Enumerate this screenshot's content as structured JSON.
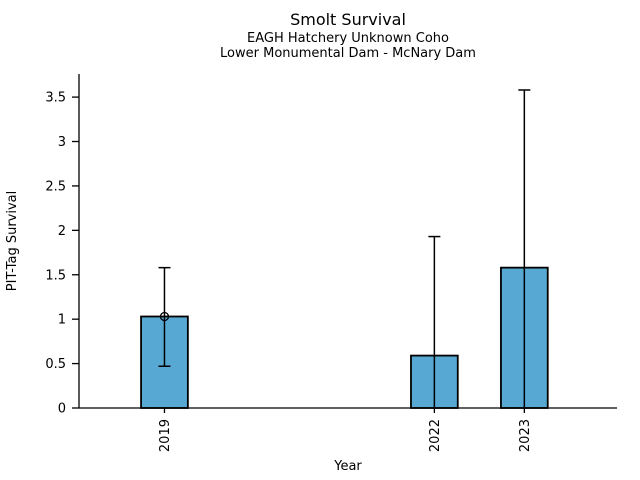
{
  "chart_data": {
    "type": "bar",
    "title": "Smolt Survival",
    "subtitle_line1": "EAGH Hatchery Unknown Coho",
    "subtitle_line2": "Lower Monumental Dam - McNary Dam",
    "xlabel": "Year",
    "ylabel": "PIT-Tag Survival",
    "categories": [
      "2019",
      "2022",
      "2023"
    ],
    "x_numeric": [
      2019,
      2022,
      2023
    ],
    "values": [
      1.03,
      0.59,
      1.58
    ],
    "error_bars": {
      "low": [
        0.47,
        0,
        0
      ],
      "high": [
        1.58,
        1.93,
        3.58
      ]
    },
    "point_marker_categories": [
      "2019"
    ],
    "xlim": [
      2018.05,
      2024.03
    ],
    "ylim": [
      0,
      3.76
    ],
    "yticks": [
      0,
      0.5,
      1,
      1.5,
      2,
      2.5,
      3,
      3.5
    ],
    "xticks": [
      2019,
      2022,
      2023
    ],
    "bar_width_years": 0.52,
    "grid": false,
    "legend": false,
    "colors": {
      "bar_fill": "#57a9d3",
      "bar_edge": "#000000",
      "error_bar": "#000000",
      "axis": "#000000",
      "text": "#000000",
      "background": "#ffffff"
    }
  }
}
